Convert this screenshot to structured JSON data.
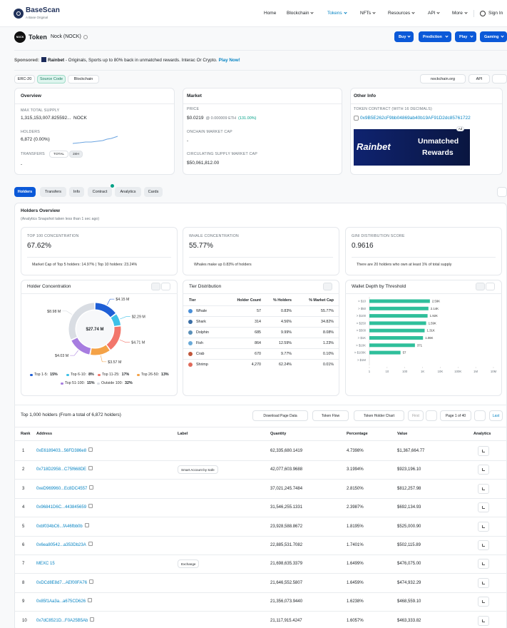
{
  "header": {
    "logo": "BaseScan",
    "logo_sub": "A Base Original",
    "nav": [
      "Home",
      "Blockchain",
      "Tokens",
      "NFTs",
      "Resources",
      "API",
      "More"
    ],
    "sign_in": "Sign In"
  },
  "token": {
    "icon": "NOCK",
    "label": "Token",
    "name": "Nock (NOCK)",
    "buttons": [
      "Buy",
      "Prediction",
      "Play",
      "Gaming"
    ]
  },
  "sponsored": {
    "label": "Sponsored:",
    "brand": "Rainbet",
    "text": " - Originals, Sports up to 80% back in unmatched rewards. Interac Or Crypto.",
    "link": "Play Now!"
  },
  "tags": [
    "ERC-20",
    "Source Code",
    "Blockchain"
  ],
  "tools": [
    "nockchain.org",
    "API"
  ],
  "overview": {
    "title": "Overview",
    "max_supply_label": "MAX TOTAL SUPPLY",
    "max_supply": "1,315,153,007.825592...",
    "unit": "NOCK",
    "holders_label": "HOLDERS",
    "holders": "6,872 (0.00%)",
    "transfers_label": "TRANSFERS",
    "transfer_tabs": [
      "TOTAL",
      "24H"
    ],
    "transfers": "-"
  },
  "market": {
    "title": "Market",
    "price_label": "PRICE",
    "price": "$0.0219",
    "price_eth": "@ 0.000009 ETH",
    "price_change": "(131.00%)",
    "onchain_label": "ONCHAIN MARKET CAP",
    "onchain": "-",
    "circ_label": "CIRCULATING SUPPLY MARKET CAP",
    "circ": "$50,061,812.00"
  },
  "other_info": {
    "title": "Other Info",
    "contract_label": "TOKEN CONTRACT (WITH 16 DECIMALS)",
    "contract": "0x9B5E262cF9bb04869ab40b19AF91D2dc85761722",
    "ad_badge": "Ad",
    "ad_brand": "Rainbet",
    "ad_text": [
      "Unmatched",
      "Rewards"
    ]
  },
  "tabs": [
    "Holders",
    "Transfers",
    "Info",
    "Contract",
    "Analytics",
    "Cards"
  ],
  "holders_overview": {
    "title": "Holders Overview",
    "subtitle": "(Analytics Snapshot taken less than 1 sec ago)",
    "stats": [
      {
        "label": "TOP 100 CONCENTRATION",
        "value": "67.62%",
        "note": "Market Cap of Top 5 holders: 14.97% | Top 10 holders: 23.24%"
      },
      {
        "label": "WHALE CONCENTRATION",
        "value": "55.77%",
        "note": "Whales make up 0.83% of holders"
      },
      {
        "label": "GINI DISTRIBUTION SCORE",
        "value": "0.9616",
        "note": "There are 20 holders who own at least 1% of total supply"
      }
    ]
  },
  "holder_concentration": {
    "type": "pie",
    "title": "Holder Concentration",
    "center_label": "$27.74 M",
    "categories": [
      "Top 1-5:",
      "Top 6-10:",
      "Top 11-25:",
      "Top 26-50:",
      "Top 51-100:",
      "Outside 100:"
    ],
    "values": [
      15,
      8,
      17,
      13,
      15,
      32
    ],
    "value_labels": [
      "15%",
      "8%",
      "17%",
      "13%",
      "15%",
      "32%"
    ],
    "amount_labels": [
      "$4.15 M",
      "$2.29 M",
      "$4.71 M",
      "$3.57 M",
      "$4.03 M",
      "$8.98 M"
    ],
    "colors": [
      "#1f5fd6",
      "#3ec1e8",
      "#f2766b",
      "#f4a247",
      "#a77de0",
      "#d9dde3"
    ]
  },
  "tier_distribution": {
    "title": "Tier Distribution",
    "columns": [
      "Tier",
      "Holder Count",
      "% Holders",
      "% Market Cap"
    ],
    "rows": [
      [
        "Whale",
        "57",
        "0.83%",
        "55.77%"
      ],
      [
        "Shark",
        "314",
        "4.56%",
        "34.82%"
      ],
      [
        "Dolphin",
        "685",
        "9.99%",
        "8.08%"
      ],
      [
        "Fish",
        "864",
        "12.59%",
        "1.23%"
      ],
      [
        "Crab",
        "670",
        "9.77%",
        "0.10%"
      ],
      [
        "Shrimp",
        "4,270",
        "62.24%",
        "0.01%"
      ]
    ]
  },
  "wallet_depth": {
    "type": "bar",
    "title": "Wallet Depth by Threshold",
    "categories": [
      "> $10",
      "> $50",
      "> $100",
      "> $250",
      "> $500",
      "> $1K",
      "> $10K",
      "> $100K",
      "> $1M"
    ],
    "values": [
      2590,
      2140,
      1920,
      1590,
      1310,
      1060,
      371,
      57,
      null
    ],
    "value_labels": [
      "2.59K",
      "2.14K",
      "1.92K",
      "1.59K",
      "1.31K",
      "1.06K",
      "371",
      "57",
      null
    ],
    "color": "#2fbf9b",
    "xscale": "log",
    "xlim": [
      1,
      10000000
    ],
    "xticks": [
      1,
      10,
      100,
      {
        "value": 1000,
        "label": "1K"
      },
      {
        "value": 10000,
        "label": "10K"
      },
      {
        "value": 100000,
        "label": "100K"
      },
      {
        "value": 1000000,
        "label": "1M"
      },
      {
        "value": 10000000,
        "label": "10M"
      }
    ]
  },
  "holders_table": {
    "title": "Top 1,000 holders (From a total of 6,872 holders)",
    "actions": [
      "Download Page Data",
      "Token Flow",
      "Token Holder Chart"
    ],
    "pagination": {
      "first": "First",
      "page": "Page 1 of 40",
      "last": "Last"
    },
    "columns": [
      "Rank",
      "Address",
      "Label",
      "Quantity",
      "Percentage",
      "Value",
      "Analytics"
    ],
    "rows": [
      [
        1,
        "0xE6189403...56FD386e8",
        null,
        "62,335,680.1419",
        "4.7398%",
        "$1,367,664.77"
      ],
      [
        2,
        "0x718D2958...C75f668DE",
        "Smart Account by Safe",
        "42,077,603.9688",
        "3.1994%",
        "$923,196.10"
      ],
      [
        3,
        "0xeD969960...Ec8DC4557",
        null,
        "37,021,245.7484",
        "2.8150%",
        "$812,257.98"
      ],
      [
        4,
        "0x96841D6C...443845659",
        null,
        "31,546,255.1331",
        "2.3987%",
        "$692,134.93"
      ],
      [
        5,
        "0xbf034bC6...fA46fbb0b",
        null,
        "23,928,588.8672",
        "1.8195%",
        "$525,000.90"
      ],
      [
        6,
        "0x6ea80542...a353Db23A",
        null,
        "22,885,531.7082",
        "1.7401%",
        "$502,115.89"
      ],
      [
        7,
        "MEXC 15",
        "Exchange",
        "21,698,635.3379",
        "1.6499%",
        "$476,075.00"
      ],
      [
        8,
        "0xDCd8E8d7...AEf00FA76",
        null,
        "21,646,552.5807",
        "1.6459%",
        "$474,932.29"
      ],
      [
        9,
        "0x85f1Aa3a...a675CD626",
        null,
        "21,356,073.9440",
        "1.6238%",
        "$468,559.10"
      ],
      [
        10,
        "0x7dC8521D...F0A25B5Ab",
        null,
        "21,117,915.4247",
        "1.6057%",
        "$463,333.82"
      ]
    ]
  }
}
